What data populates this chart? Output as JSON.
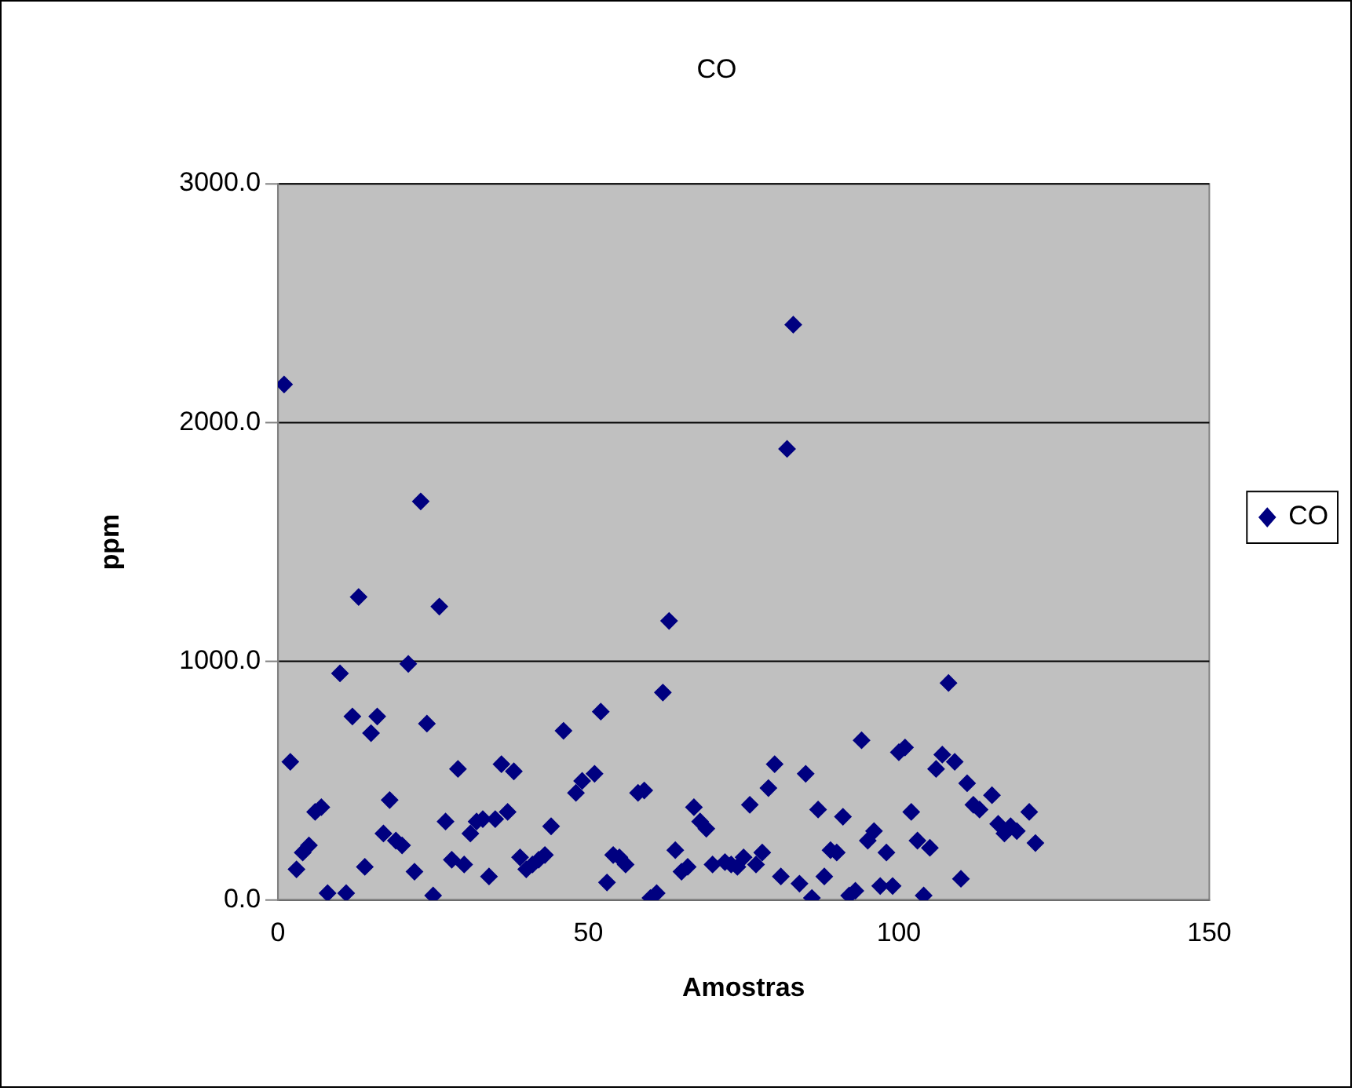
{
  "chart_data": {
    "type": "scatter",
    "title": "CO",
    "xlabel": "Amostras",
    "ylabel": "ppm",
    "x": [
      1,
      2,
      3,
      4,
      5,
      6,
      7,
      8,
      10,
      11,
      12,
      13,
      14,
      15,
      16,
      17,
      18,
      19,
      20,
      21,
      22,
      23,
      24,
      25,
      26,
      27,
      28,
      29,
      30,
      31,
      32,
      33,
      34,
      35,
      36,
      37,
      38,
      39,
      40,
      41,
      42,
      43,
      44,
      46,
      48,
      49,
      51,
      52,
      53,
      54,
      55,
      56,
      58,
      59,
      60,
      61,
      62,
      63,
      64,
      65,
      66,
      67,
      68,
      69,
      70,
      72,
      73,
      74,
      75,
      76,
      77,
      78,
      79,
      80,
      81,
      82,
      83,
      84,
      85,
      86,
      87,
      88,
      89,
      90,
      91,
      92,
      93,
      94,
      95,
      96,
      97,
      98,
      99,
      100,
      101,
      102,
      103,
      104,
      105,
      106,
      107,
      108,
      109,
      110,
      111,
      112,
      113,
      115,
      116,
      117,
      118,
      119,
      121,
      122
    ],
    "series": [
      {
        "name": "CO",
        "color": "#000080",
        "values": [
          2160,
          580,
          130,
          200,
          230,
          370,
          390,
          30,
          950,
          30,
          770,
          1270,
          140,
          700,
          770,
          280,
          420,
          250,
          230,
          990,
          120,
          1670,
          740,
          20,
          1230,
          330,
          170,
          550,
          150,
          280,
          330,
          340,
          100,
          340,
          570,
          370,
          540,
          180,
          130,
          150,
          170,
          190,
          310,
          710,
          450,
          500,
          530,
          790,
          75,
          190,
          180,
          150,
          450,
          460,
          10,
          30,
          870,
          1170,
          210,
          120,
          140,
          390,
          330,
          300,
          150,
          160,
          150,
          140,
          180,
          400,
          150,
          200,
          470,
          570,
          100,
          1890,
          2410,
          70,
          530,
          10,
          380,
          100,
          210,
          200,
          350,
          20,
          40,
          670,
          250,
          290,
          60,
          200,
          60,
          620,
          640,
          370,
          250,
          20,
          220,
          550,
          610,
          910,
          580,
          90,
          490,
          400,
          380,
          440,
          320,
          280,
          310,
          290,
          370,
          240
        ]
      }
    ],
    "xlim": [
      0,
      150
    ],
    "xticks": [
      0,
      50,
      100,
      150
    ],
    "ylim": [
      0,
      3000
    ],
    "yticks": [
      {
        "value": 0,
        "label": "0.0"
      },
      {
        "value": 1000,
        "label": "1000.0"
      },
      {
        "value": 2000,
        "label": "2000.0"
      },
      {
        "value": 3000,
        "label": "3000.0"
      }
    ],
    "grid": "y",
    "legend": "right",
    "marker": "diamond"
  }
}
